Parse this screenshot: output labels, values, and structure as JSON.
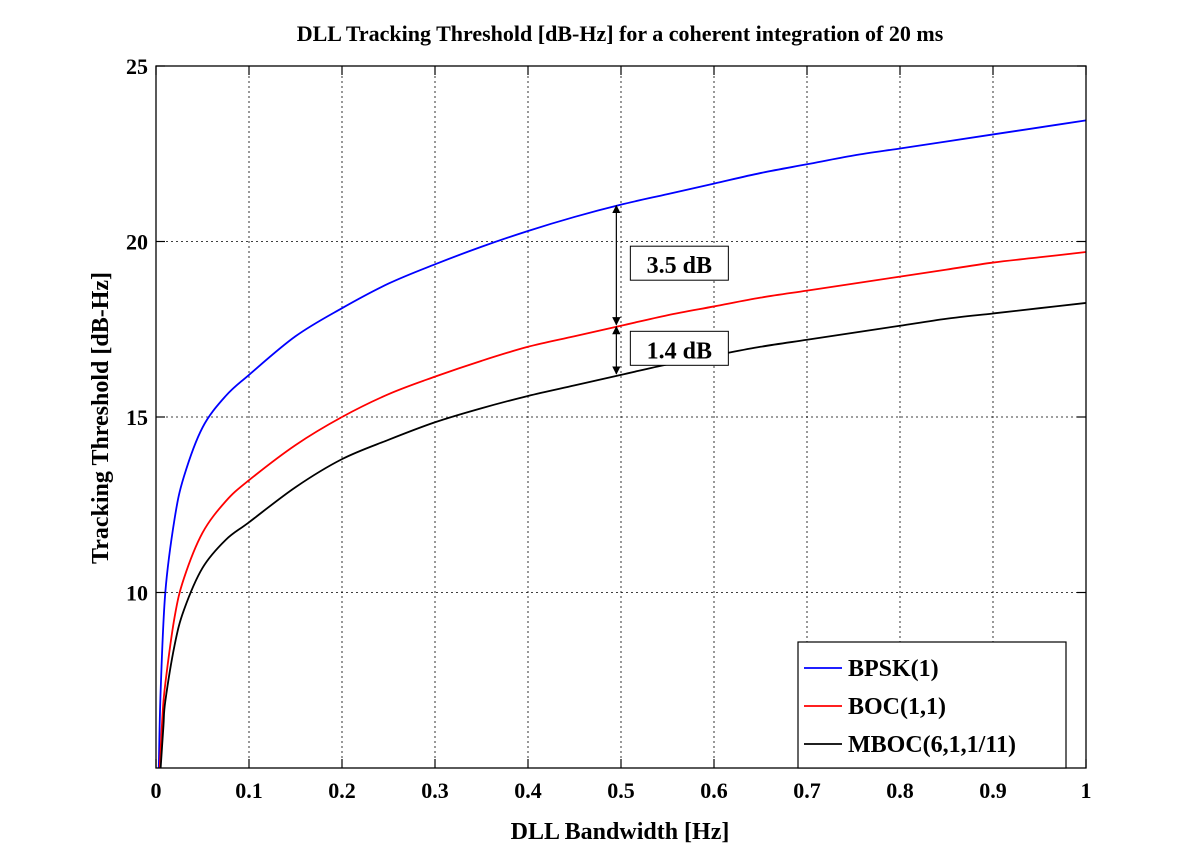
{
  "chart_data": {
    "type": "line",
    "title": "DLL Tracking Threshold [dB-Hz] for a coherent integration of 20 ms",
    "xlabel": "DLL Bandwidth [Hz]",
    "ylabel": "Tracking Threshold [dB-Hz]",
    "xlim": [
      0,
      1
    ],
    "ylim": [
      5,
      25
    ],
    "xticks": [
      0,
      0.1,
      0.2,
      0.3,
      0.4,
      0.5,
      0.6,
      0.7,
      0.8,
      0.9,
      1
    ],
    "xtick_labels": [
      "0",
      "0.1",
      "0.2",
      "0.3",
      "0.4",
      "0.5",
      "0.6",
      "0.7",
      "0.8",
      "0.9",
      "1"
    ],
    "yticks": [
      10,
      15,
      20,
      25
    ],
    "ytick_labels": [
      "10",
      "15",
      "20",
      "25"
    ],
    "grid": true,
    "legend_position": "bottom-right",
    "series": [
      {
        "name": "BPSK(1)",
        "color": "#0000ff",
        "x": [
          0.003,
          0.005,
          0.01,
          0.02,
          0.03,
          0.05,
          0.075,
          0.1,
          0.15,
          0.2,
          0.25,
          0.3,
          0.35,
          0.4,
          0.45,
          0.5,
          0.55,
          0.6,
          0.65,
          0.7,
          0.75,
          0.8,
          0.85,
          0.9,
          0.95,
          1.0
        ],
        "y": [
          5.0,
          7.2,
          10.0,
          12.1,
          13.3,
          14.7,
          15.6,
          16.2,
          17.3,
          18.1,
          18.8,
          19.35,
          19.85,
          20.3,
          20.7,
          21.05,
          21.35,
          21.65,
          21.95,
          22.2,
          22.45,
          22.65,
          22.85,
          23.05,
          23.25,
          23.45
        ]
      },
      {
        "name": "BOC(1,1)",
        "color": "#ff0000",
        "x": [
          0.004,
          0.007,
          0.01,
          0.02,
          0.03,
          0.05,
          0.075,
          0.1,
          0.15,
          0.2,
          0.25,
          0.3,
          0.35,
          0.4,
          0.45,
          0.5,
          0.55,
          0.6,
          0.65,
          0.7,
          0.75,
          0.8,
          0.85,
          0.9,
          0.95,
          1.0
        ],
        "y": [
          5.0,
          6.5,
          7.4,
          9.3,
          10.4,
          11.7,
          12.6,
          13.2,
          14.2,
          15.0,
          15.65,
          16.15,
          16.6,
          17.0,
          17.3,
          17.6,
          17.9,
          18.15,
          18.4,
          18.6,
          18.8,
          19.0,
          19.2,
          19.4,
          19.55,
          19.7
        ]
      },
      {
        "name": "MBOC(6,1,1/11)",
        "color": "#000000",
        "x": [
          0.005,
          0.008,
          0.01,
          0.02,
          0.03,
          0.05,
          0.075,
          0.1,
          0.15,
          0.2,
          0.25,
          0.3,
          0.35,
          0.4,
          0.45,
          0.5,
          0.55,
          0.6,
          0.65,
          0.7,
          0.75,
          0.8,
          0.85,
          0.9,
          0.95,
          1.0
        ],
        "y": [
          5.0,
          6.2,
          6.9,
          8.5,
          9.5,
          10.7,
          11.5,
          12.0,
          13.0,
          13.8,
          14.35,
          14.85,
          15.25,
          15.6,
          15.9,
          16.2,
          16.5,
          16.75,
          17.0,
          17.2,
          17.4,
          17.6,
          17.8,
          17.95,
          18.1,
          18.25
        ]
      }
    ],
    "annotations": [
      {
        "text": "3.5 dB",
        "x": 0.495,
        "y_from": 17.6,
        "y_to": 21.05
      },
      {
        "text": "1.4 dB",
        "x": 0.495,
        "y_from": 16.2,
        "y_to": 17.6
      }
    ]
  }
}
